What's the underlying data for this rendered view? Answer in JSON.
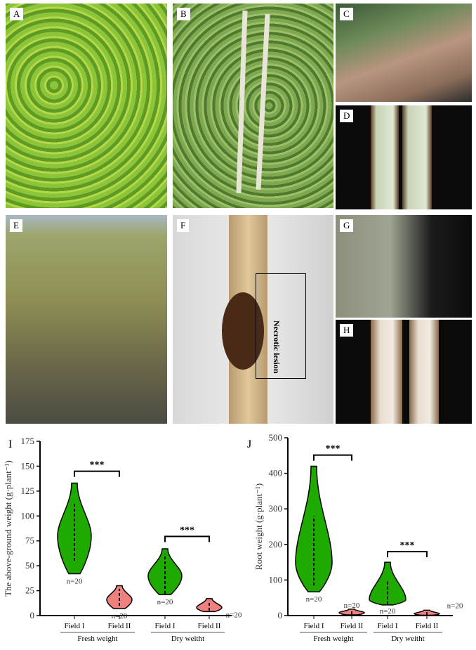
{
  "panels": {
    "A": "A",
    "B": "B",
    "C": "C",
    "D": "D",
    "E": "E",
    "F": "F",
    "G": "G",
    "H": "H"
  },
  "annotation": "Necrotic lesion",
  "chart_data": [
    {
      "type": "violin",
      "panel_label": "I",
      "ylabel": "The above-ground weight (g·plant⁻¹)",
      "ylim": [
        0,
        175
      ],
      "yticks": [
        0,
        25,
        50,
        75,
        100,
        125,
        150,
        175
      ],
      "categories": [
        "Field I",
        "Field II",
        "Field I",
        "Field II"
      ],
      "groups": [
        "Fresh weight",
        "Dry weitht"
      ],
      "series": [
        {
          "category": "Field I",
          "group": "Fresh weight",
          "min": 42,
          "max": 133,
          "mode": 80,
          "q1": 55,
          "q3": 112,
          "n": "n=20",
          "color": "#1faa00"
        },
        {
          "category": "Field II",
          "group": "Fresh weight",
          "min": 7,
          "max": 30,
          "mode": 16,
          "q1": 10,
          "q3": 27,
          "n": "n=20",
          "color": "#f08080"
        },
        {
          "category": "Field I",
          "group": "Dry weitht",
          "min": 21,
          "max": 67,
          "mode": 40,
          "q1": 22,
          "q3": 62,
          "n": "n=20",
          "color": "#1faa00"
        },
        {
          "category": "Field II",
          "group": "Dry weitht",
          "min": 4,
          "max": 17,
          "mode": 8,
          "q1": 5,
          "q3": 15,
          "n": "n=20",
          "color": "#f08080"
        }
      ],
      "significance": [
        "***",
        "***"
      ]
    },
    {
      "type": "violin",
      "panel_label": "J",
      "ylabel": "Root weight (g·plant⁻¹)",
      "ylim": [
        0,
        500
      ],
      "yticks": [
        0,
        100,
        200,
        300,
        400,
        500
      ],
      "categories": [
        "Field I",
        "Field II",
        "Field I",
        "Field II"
      ],
      "groups": [
        "Fresh weight",
        "Dry weitht"
      ],
      "series": [
        {
          "category": "Field I",
          "group": "Fresh weight",
          "min": 67,
          "max": 420,
          "mode": 150,
          "q1": 85,
          "q3": 280,
          "n": "n=20",
          "color": "#1faa00"
        },
        {
          "category": "Field II",
          "group": "Fresh weight",
          "min": 2,
          "max": 18,
          "mode": 8,
          "q1": 4,
          "q3": 15,
          "n": "n=20",
          "color": "#f08080"
        },
        {
          "category": "Field I",
          "group": "Dry weitht",
          "min": 30,
          "max": 150,
          "mode": 45,
          "q1": 32,
          "q3": 100,
          "n": "n=20",
          "color": "#1faa00"
        },
        {
          "category": "Field II",
          "group": "Dry weitht",
          "min": 1,
          "max": 15,
          "mode": 5,
          "q1": 2,
          "q3": 12,
          "n": "n=20",
          "color": "#f08080"
        }
      ],
      "significance": [
        "***",
        "***"
      ]
    }
  ]
}
